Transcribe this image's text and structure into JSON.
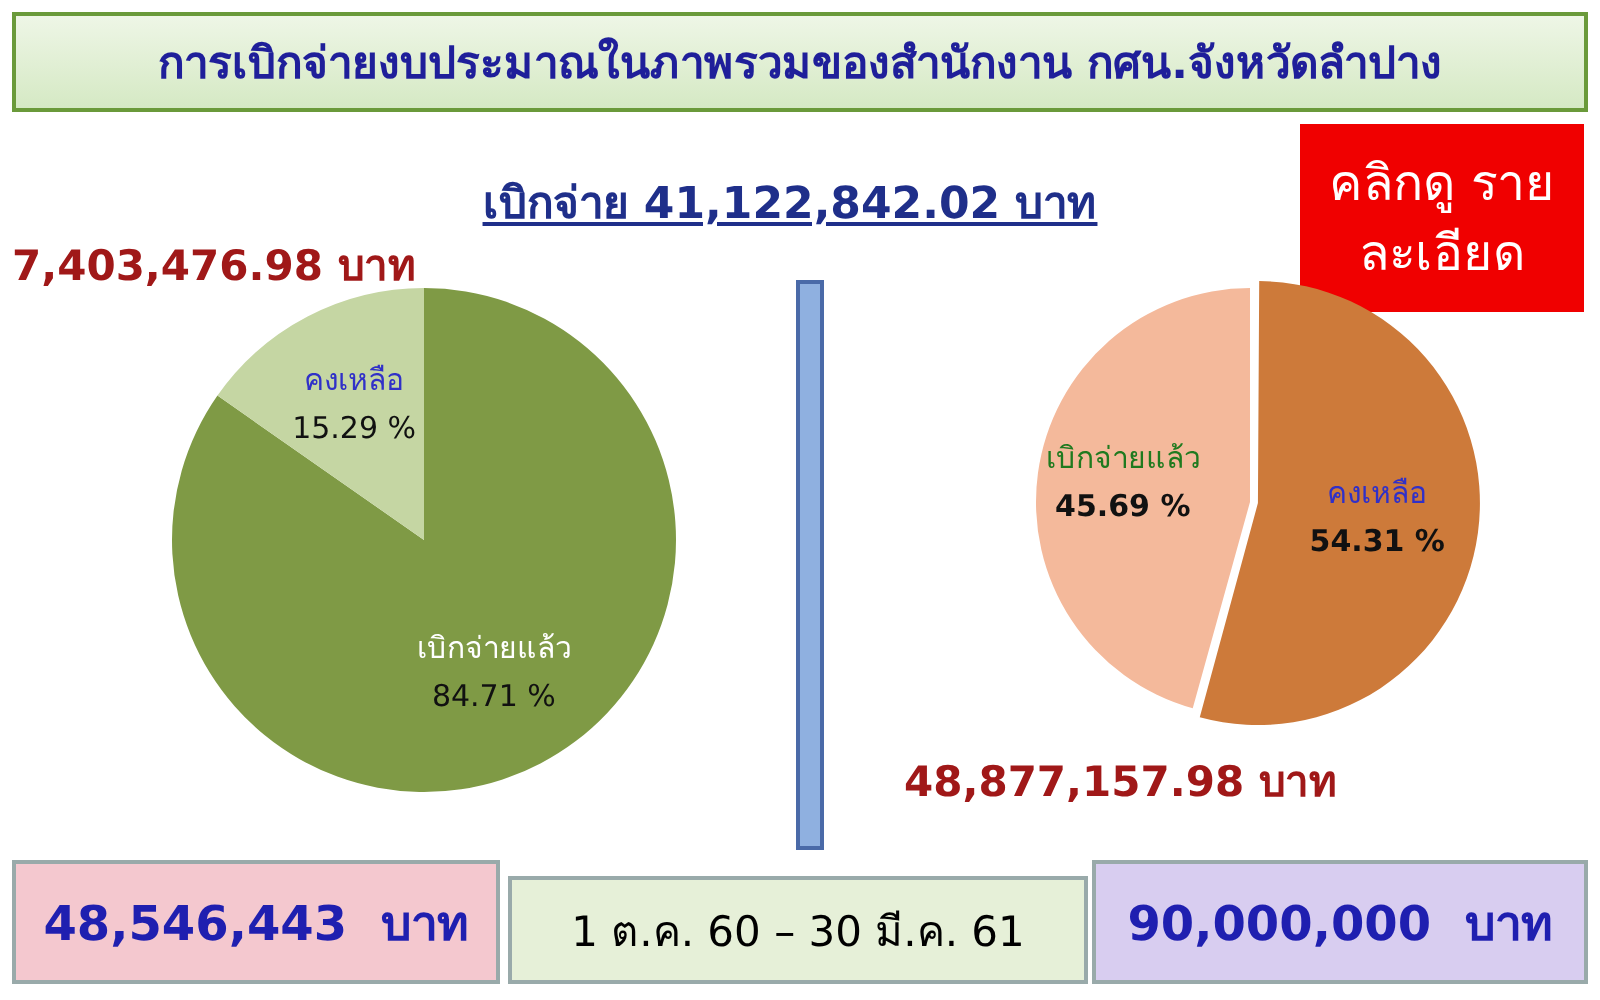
{
  "chart_data": [
    {
      "type": "pie",
      "title": "การเบิกจ่ายงบประมาณในภาพรวมของสำนักงาน กศน.จังหวัดลำปาง",
      "categories": [
        "เบิกจ่ายแล้ว",
        "คงเหลือ"
      ],
      "values": [
        84.71,
        15.29
      ],
      "colors": [
        "#7f9a45",
        "#c5d6a3"
      ],
      "value_labels": [
        "84.71 %",
        "15.29 %"
      ],
      "legend": false,
      "annotations": [
        "เบิกจ่าย 41,122,842.02 บาท",
        "7,403,476.98 บาท",
        "48,546,443  บาท",
        "1 ต.ค. 60 – 30 มี.ค. 61"
      ]
    },
    {
      "type": "pie",
      "categories": [
        "คงเหลือ",
        "เบิกจ่ายแล้ว"
      ],
      "values": [
        54.31,
        45.69
      ],
      "colors": [
        "#cd7a3a",
        "#f4b99b"
      ],
      "value_labels": [
        "54.31 %",
        "45.69 %"
      ],
      "legend": false,
      "annotations": [
        "คลิกดู รายละเอียด",
        "48,877,157.98 บาท",
        "90,000,000  บาท"
      ]
    }
  ]
}
